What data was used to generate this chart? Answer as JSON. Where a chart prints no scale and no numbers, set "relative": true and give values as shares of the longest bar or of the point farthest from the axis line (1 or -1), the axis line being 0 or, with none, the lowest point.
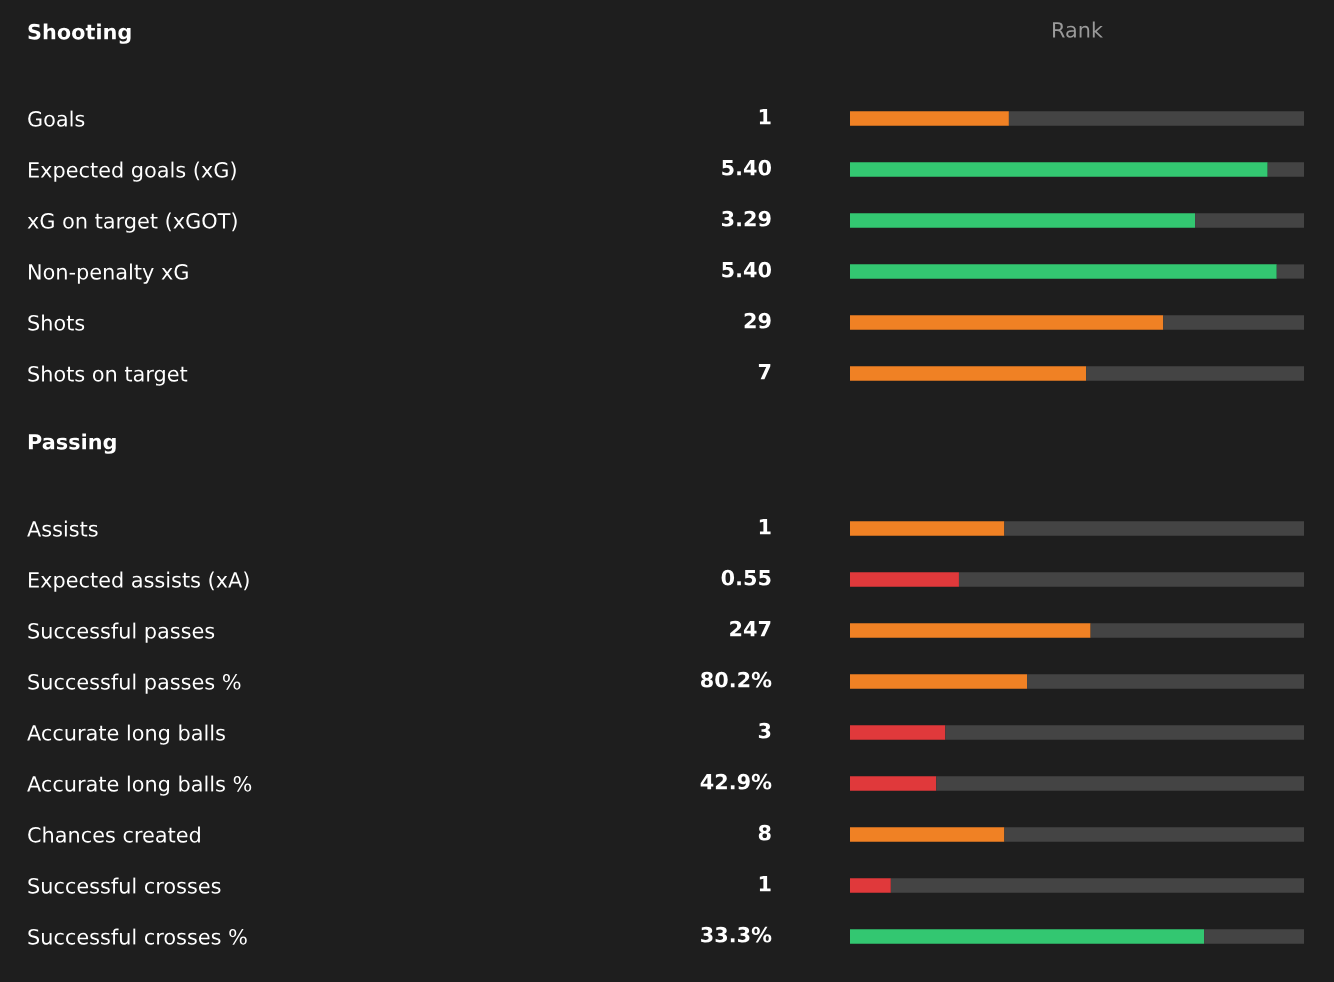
{
  "chart_data": [
    {
      "type": "bar",
      "orientation": "horizontal",
      "stacked": true,
      "relative": true,
      "title": "Shooting",
      "xlabel": "Rank",
      "categories": [
        "Goals",
        "Expected goals (xG)",
        "xG on target (xGOT)",
        "Non-penalty xG",
        "Shots",
        "Shots on target"
      ],
      "series": [
        {
          "colors": [
            "#f08124",
            "#33c771",
            "#33c771",
            "#33c771",
            "#f08124",
            "#f08124"
          ],
          "values": [
            0.35,
            0.92,
            0.76,
            0.94,
            0.69,
            0.52
          ]
        },
        {
          "color": "#444444",
          "values": [
            0.65,
            0.08,
            0.24,
            0.06,
            0.31,
            0.48
          ]
        }
      ],
      "annotations": [
        "1",
        "5.40",
        "3.29",
        "5.40",
        "29",
        "7"
      ]
    },
    {
      "type": "bar",
      "orientation": "horizontal",
      "stacked": true,
      "relative": true,
      "title": "Passing",
      "categories": [
        "Assists",
        "Expected assists (xA)",
        "Successful passes",
        "Successful passes %",
        "Accurate long balls",
        "Accurate long balls %",
        "Chances created",
        "Successful crosses",
        "Successful crosses %"
      ],
      "series": [
        {
          "colors": [
            "#f08124",
            "#e0393b",
            "#f08124",
            "#f08124",
            "#e0393b",
            "#e0393b",
            "#f08124",
            "#e0393b",
            "#33c771"
          ],
          "values": [
            0.34,
            0.24,
            0.53,
            0.39,
            0.21,
            0.19,
            0.34,
            0.09,
            0.78
          ]
        },
        {
          "color": "#444444",
          "values": [
            0.66,
            0.76,
            0.47,
            0.61,
            0.79,
            0.81,
            0.66,
            0.91,
            0.22
          ]
        }
      ],
      "annotations": [
        "1",
        "0.55",
        "247",
        "80.2%",
        "3",
        "42.9%",
        "8",
        "1",
        "33.3%"
      ]
    }
  ]
}
